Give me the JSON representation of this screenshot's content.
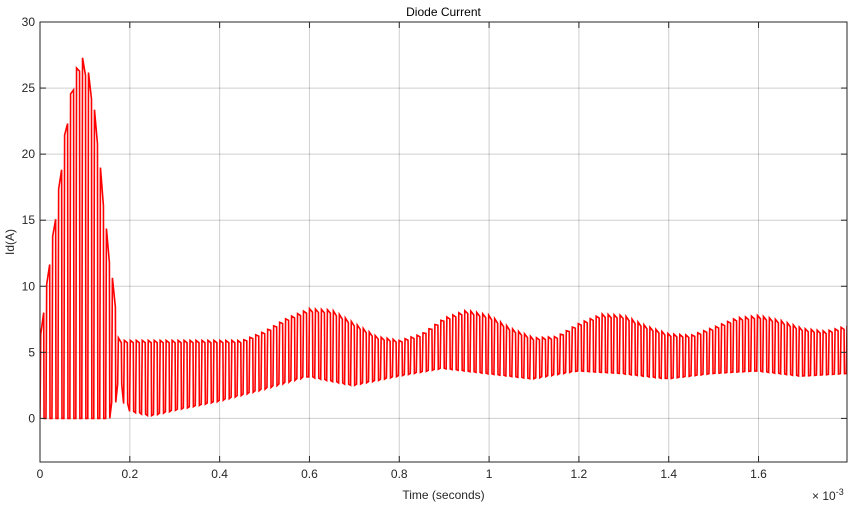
{
  "chart_data": {
    "type": "line",
    "title": "Diode Current",
    "xlabel": "Time (seconds)",
    "ylabel": "Id(A)",
    "x_exponent_label": "× 10",
    "x_exponent_power": "-3",
    "xlim": [
      0,
      1.797
    ],
    "ylim": [
      -3.3,
      30
    ],
    "x_ticks": [
      0,
      0.2,
      0.4,
      0.6,
      0.8,
      1.0,
      1.2,
      1.4,
      1.6
    ],
    "x_tick_labels": [
      "0",
      "0.2",
      "0.4",
      "0.6",
      "0.8",
      "1",
      "1.2",
      "1.4",
      "1.6"
    ],
    "y_ticks": [
      0,
      5,
      10,
      15,
      20,
      25,
      30
    ],
    "y_tick_labels": [
      "0",
      "5",
      "10",
      "15",
      "20",
      "25",
      "30"
    ],
    "grid": true,
    "legend": "none",
    "series_color": "#ff0000",
    "series": [
      {
        "switching_period": 0.0133,
        "envelope_peak": [
          [
            0,
            5.9
          ],
          [
            0.02,
            11.6
          ],
          [
            0.04,
            16.9
          ],
          [
            0.055,
            21.5
          ],
          [
            0.07,
            25.0
          ],
          [
            0.085,
            27.0
          ],
          [
            0.095,
            27.3
          ],
          [
            0.11,
            26.0
          ],
          [
            0.125,
            22.5
          ],
          [
            0.14,
            17.0
          ],
          [
            0.155,
            12.0
          ],
          [
            0.165,
            9.8
          ],
          [
            0.175,
            5.9
          ],
          [
            0.2,
            5.9
          ],
          [
            0.3,
            5.9
          ],
          [
            0.4,
            5.9
          ],
          [
            0.45,
            5.9
          ],
          [
            0.5,
            6.6
          ],
          [
            0.55,
            7.6
          ],
          [
            0.6,
            8.3
          ],
          [
            0.65,
            8.2
          ],
          [
            0.7,
            7.2
          ],
          [
            0.75,
            6.2
          ],
          [
            0.8,
            5.9
          ],
          [
            0.85,
            6.4
          ],
          [
            0.9,
            7.6
          ],
          [
            0.95,
            8.2
          ],
          [
            1.0,
            7.8
          ],
          [
            1.05,
            6.8
          ],
          [
            1.1,
            6.1
          ],
          [
            1.15,
            6.2
          ],
          [
            1.2,
            7.2
          ],
          [
            1.25,
            7.9
          ],
          [
            1.3,
            7.8
          ],
          [
            1.35,
            7.0
          ],
          [
            1.4,
            6.4
          ],
          [
            1.45,
            6.3
          ],
          [
            1.5,
            6.9
          ],
          [
            1.55,
            7.6
          ],
          [
            1.6,
            7.8
          ],
          [
            1.65,
            7.4
          ],
          [
            1.7,
            6.8
          ],
          [
            1.75,
            6.6
          ],
          [
            1.797,
            7.0
          ]
        ],
        "envelope_trough": [
          [
            0,
            0
          ],
          [
            0.16,
            0
          ],
          [
            0.18,
            2.8
          ],
          [
            0.2,
            0.6
          ],
          [
            0.25,
            0.2
          ],
          [
            0.3,
            0.6
          ],
          [
            0.4,
            1.3
          ],
          [
            0.5,
            2.2
          ],
          [
            0.6,
            3.2
          ],
          [
            0.7,
            2.5
          ],
          [
            0.8,
            3.2
          ],
          [
            0.9,
            3.8
          ],
          [
            1.0,
            3.4
          ],
          [
            1.1,
            3.0
          ],
          [
            1.2,
            3.6
          ],
          [
            1.3,
            3.4
          ],
          [
            1.4,
            3.0
          ],
          [
            1.5,
            3.4
          ],
          [
            1.6,
            3.6
          ],
          [
            1.7,
            3.2
          ],
          [
            1.797,
            3.4
          ]
        ]
      }
    ]
  }
}
